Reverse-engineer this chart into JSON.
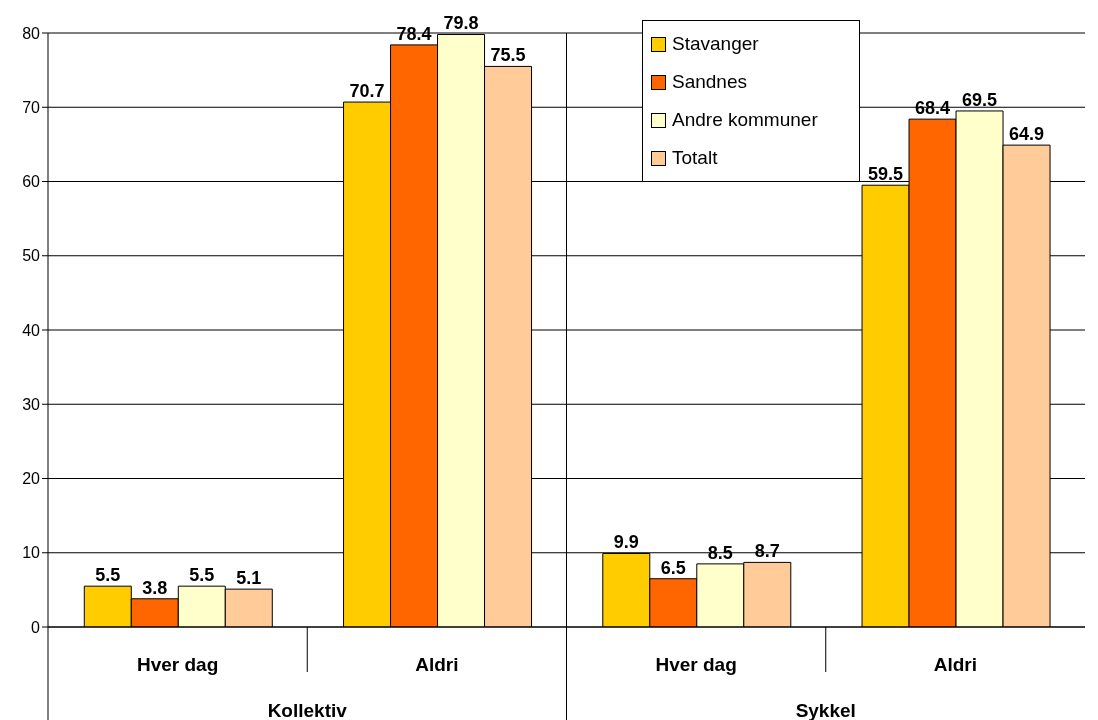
{
  "chart_data": {
    "type": "bar",
    "categories": [
      "Hver dag",
      "Aldri",
      "Hver dag",
      "Aldri"
    ],
    "series": [
      {
        "name": "Stavanger",
        "color": "#ffcc00",
        "values": [
          5.5,
          70.7,
          9.9,
          59.5
        ]
      },
      {
        "name": "Sandnes",
        "color": "#ff6600",
        "values": [
          3.8,
          78.4,
          6.5,
          68.4
        ]
      },
      {
        "name": "Andre kommuner",
        "color": "#ffffcc",
        "values": [
          5.5,
          79.8,
          8.5,
          69.5
        ]
      },
      {
        "name": "Totalt",
        "color": "#ffcc99",
        "values": [
          5.1,
          75.5,
          8.7,
          64.9
        ]
      }
    ],
    "annotations": [
      "Kollektiv",
      "Sykkel"
    ],
    "ylim": [
      0,
      80
    ],
    "yticks": [
      0,
      10,
      20,
      30,
      40,
      50,
      60,
      70,
      80
    ],
    "grid": "y",
    "legend": "top right",
    "data_labels": true
  }
}
